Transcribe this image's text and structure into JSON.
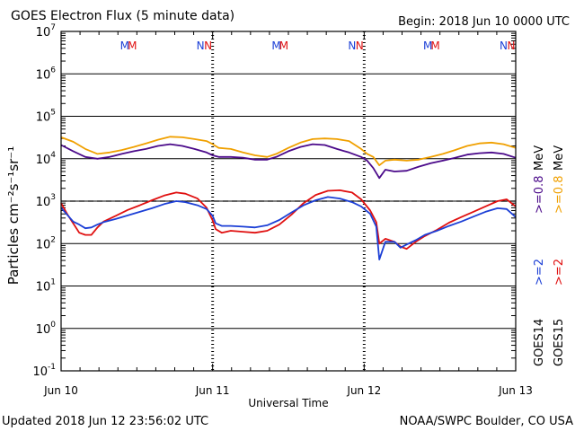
{
  "header": {
    "title": "GOES Electron Flux (5 minute data)",
    "begin": "Begin: 2018 Jun 10 0000 UTC"
  },
  "footer": {
    "updated": "Updated 2018 Jun 12 23:56:02 UTC",
    "credit": "NOAA/SWPC Boulder, CO USA"
  },
  "colors": {
    "goes14_2mev": "#1c3fd6",
    "goes15_2mev": "#e01010",
    "goes14_08mev": "#4b0a8a",
    "goes15_08mev": "#f0a000"
  },
  "chart_data": {
    "type": "line",
    "title": "GOES Electron Flux (5 minute data)",
    "xlabel": "Universal Time",
    "ylabel": "Particles cm⁻²s⁻¹sr⁻¹",
    "x_unit": "days since 2018 Jun 10 0000 UTC",
    "xlim": [
      0,
      3
    ],
    "x_ticks": [
      {
        "x": 0,
        "label": "Jun 10"
      },
      {
        "x": 1,
        "label": "Jun 11"
      },
      {
        "x": 2,
        "label": "Jun 12"
      },
      {
        "x": 3,
        "label": "Jun 13"
      }
    ],
    "y_scale": "log",
    "ylim": [
      0.1,
      10000000
    ],
    "y_ticks": [
      {
        "exp": -1,
        "value": 0.1
      },
      {
        "exp": 0,
        "value": 1
      },
      {
        "exp": 1,
        "value": 10
      },
      {
        "exp": 2,
        "value": 100
      },
      {
        "exp": 3,
        "value": 1000
      },
      {
        "exp": 4,
        "value": 10000
      },
      {
        "exp": 5,
        "value": 100000
      },
      {
        "exp": 6,
        "value": 1000000
      },
      {
        "exp": 7,
        "value": 10000000
      }
    ],
    "threshold": {
      "value": 1000,
      "style": "dashed"
    },
    "markers": [
      {
        "x": 0.42,
        "label": "M",
        "color": "#1c3fd6"
      },
      {
        "x": 0.47,
        "label": "M",
        "color": "#e01010"
      },
      {
        "x": 0.92,
        "label": "N",
        "color": "#1c3fd6"
      },
      {
        "x": 0.97,
        "label": "N",
        "color": "#e01010"
      },
      {
        "x": 1.42,
        "label": "M",
        "color": "#1c3fd6"
      },
      {
        "x": 1.47,
        "label": "M",
        "color": "#e01010"
      },
      {
        "x": 1.92,
        "label": "N",
        "color": "#1c3fd6"
      },
      {
        "x": 1.97,
        "label": "N",
        "color": "#e01010"
      },
      {
        "x": 2.42,
        "label": "M",
        "color": "#1c3fd6"
      },
      {
        "x": 2.47,
        "label": "M",
        "color": "#e01010"
      },
      {
        "x": 2.92,
        "label": "N",
        "color": "#1c3fd6"
      },
      {
        "x": 2.97,
        "label": "N",
        "color": "#e01010"
      }
    ],
    "legend": [
      {
        "satellite": "GOES14",
        "entries": [
          {
            "label": ">=2",
            "color": "#1c3fd6"
          },
          {
            "label": ">=0.8",
            "color": "#4b0a8a"
          }
        ]
      },
      {
        "satellite": "GOES15",
        "entries": [
          {
            "label": ">=2",
            "color": "#e01010"
          },
          {
            "label": ">=0.8",
            "color": "#f0a000"
          }
        ]
      }
    ],
    "legend_unit": "MeV",
    "series": [
      {
        "name": "GOES15 >=0.8 MeV",
        "color": "#f0a000",
        "x": [
          0,
          0.08,
          0.16,
          0.24,
          0.32,
          0.4,
          0.48,
          0.56,
          0.64,
          0.72,
          0.8,
          0.88,
          0.96,
          1.0,
          1.04,
          1.12,
          1.2,
          1.28,
          1.36,
          1.42,
          1.5,
          1.58,
          1.66,
          1.74,
          1.82,
          1.9,
          1.98,
          2.02,
          2.06,
          2.1,
          2.14,
          2.2,
          2.28,
          2.36,
          2.44,
          2.52,
          2.6,
          2.68,
          2.76,
          2.84,
          2.92,
          3.0
        ],
        "y": [
          32000,
          25000,
          17000,
          13000,
          14000,
          16000,
          19000,
          23000,
          28000,
          33000,
          32000,
          29000,
          26000,
          22000,
          18000,
          17000,
          14000,
          12000,
          11000,
          13000,
          18000,
          24000,
          29000,
          30000,
          29000,
          26000,
          17000,
          13000,
          11000,
          7000,
          9000,
          9500,
          9000,
          9500,
          11000,
          13000,
          16000,
          20000,
          23000,
          24000,
          22000,
          18000
        ]
      },
      {
        "name": "GOES14 >=0.8 MeV",
        "color": "#4b0a8a",
        "x": [
          0,
          0.08,
          0.16,
          0.24,
          0.32,
          0.4,
          0.48,
          0.56,
          0.64,
          0.72,
          0.8,
          0.88,
          0.96,
          1.0,
          1.04,
          1.12,
          1.2,
          1.28,
          1.36,
          1.42,
          1.5,
          1.58,
          1.66,
          1.74,
          1.82,
          1.9,
          1.98,
          2.02,
          2.06,
          2.1,
          2.14,
          2.2,
          2.28,
          2.36,
          2.44,
          2.52,
          2.6,
          2.68,
          2.76,
          2.84,
          2.92,
          3.0
        ],
        "y": [
          21000,
          15000,
          11000,
          10000,
          11000,
          13000,
          15000,
          17000,
          20000,
          22000,
          20000,
          17000,
          14000,
          12000,
          11000,
          11000,
          10500,
          9500,
          9500,
          11000,
          15000,
          19000,
          22000,
          21000,
          17000,
          14000,
          11000,
          9000,
          6000,
          3500,
          5500,
          5000,
          5200,
          6500,
          7800,
          9000,
          10500,
          12500,
          13500,
          14000,
          13000,
          10500
        ]
      },
      {
        "name": "GOES15 >=2 MeV",
        "color": "#e01010",
        "x": [
          0,
          0.04,
          0.08,
          0.12,
          0.16,
          0.2,
          0.24,
          0.28,
          0.36,
          0.44,
          0.52,
          0.6,
          0.68,
          0.76,
          0.82,
          0.9,
          0.96,
          1.0,
          1.02,
          1.06,
          1.12,
          1.2,
          1.28,
          1.36,
          1.44,
          1.52,
          1.6,
          1.68,
          1.76,
          1.84,
          1.92,
          1.98,
          2.04,
          2.08,
          2.1,
          2.14,
          2.2,
          2.24,
          2.28,
          2.34,
          2.4,
          2.48,
          2.56,
          2.64,
          2.72,
          2.8,
          2.88,
          2.94,
          3.0
        ],
        "y": [
          900,
          500,
          300,
          180,
          160,
          160,
          240,
          330,
          450,
          620,
          800,
          1050,
          1350,
          1600,
          1500,
          1150,
          700,
          350,
          220,
          180,
          200,
          190,
          180,
          200,
          280,
          480,
          900,
          1400,
          1750,
          1800,
          1600,
          1100,
          600,
          320,
          100,
          130,
          110,
          85,
          75,
          110,
          150,
          210,
          310,
          420,
          560,
          750,
          1000,
          1100,
          750
        ]
      },
      {
        "name": "GOES14 >=2 MeV",
        "color": "#1c3fd6",
        "x": [
          0,
          0.04,
          0.08,
          0.12,
          0.16,
          0.2,
          0.24,
          0.28,
          0.36,
          0.44,
          0.52,
          0.6,
          0.68,
          0.76,
          0.82,
          0.9,
          0.96,
          1.0,
          1.02,
          1.06,
          1.12,
          1.2,
          1.28,
          1.36,
          1.44,
          1.52,
          1.6,
          1.68,
          1.76,
          1.84,
          1.92,
          1.98,
          2.04,
          2.08,
          2.1,
          2.14,
          2.2,
          2.24,
          2.28,
          2.34,
          2.4,
          2.48,
          2.56,
          2.64,
          2.72,
          2.8,
          2.88,
          2.94,
          3.0
        ],
        "y": [
          700,
          480,
          330,
          280,
          230,
          240,
          280,
          320,
          380,
          460,
          560,
          680,
          850,
          1000,
          950,
          800,
          650,
          450,
          300,
          260,
          260,
          250,
          240,
          270,
          360,
          540,
          800,
          1050,
          1250,
          1150,
          950,
          750,
          500,
          250,
          42,
          110,
          110,
          80,
          95,
          120,
          160,
          200,
          260,
          330,
          430,
          560,
          680,
          650,
          420
        ]
      }
    ]
  }
}
